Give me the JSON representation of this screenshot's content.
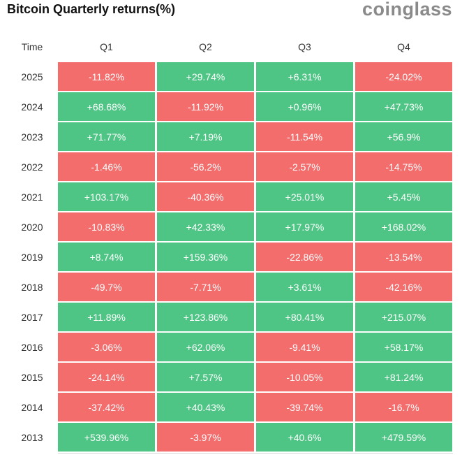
{
  "header": {
    "title": "Bitcoin Quarterly returns(%)",
    "logo": "coinglass"
  },
  "table": {
    "columns": [
      "Time",
      "Q1",
      "Q2",
      "Q3",
      "Q4"
    ],
    "colors": {
      "positive": "#4fc585",
      "negative": "#f36d6d"
    },
    "rows": [
      [
        "2025",
        "-11.82%",
        "+29.74%",
        "+6.31%",
        "-24.02%"
      ],
      [
        "2024",
        "+68.68%",
        "-11.92%",
        "+0.96%",
        "+47.73%"
      ],
      [
        "2023",
        "+71.77%",
        "+7.19%",
        "-11.54%",
        "+56.9%"
      ],
      [
        "2022",
        "-1.46%",
        "-56.2%",
        "-2.57%",
        "-14.75%"
      ],
      [
        "2021",
        "+103.17%",
        "-40.36%",
        "+25.01%",
        "+5.45%"
      ],
      [
        "2020",
        "-10.83%",
        "+42.33%",
        "+17.97%",
        "+168.02%"
      ],
      [
        "2019",
        "+8.74%",
        "+159.36%",
        "-22.86%",
        "-13.54%"
      ],
      [
        "2018",
        "-49.7%",
        "-7.71%",
        "+3.61%",
        "-42.16%"
      ],
      [
        "2017",
        "+11.89%",
        "+123.86%",
        "+80.41%",
        "+215.07%"
      ],
      [
        "2016",
        "-3.06%",
        "+62.06%",
        "-9.41%",
        "+58.17%"
      ],
      [
        "2015",
        "-24.14%",
        "+7.57%",
        "-10.05%",
        "+81.24%"
      ],
      [
        "2014",
        "-37.42%",
        "+40.43%",
        "-39.74%",
        "-16.7%"
      ],
      [
        "2013",
        "+539.96%",
        "-3.97%",
        "+40.6%",
        "+479.59%"
      ]
    ]
  }
}
